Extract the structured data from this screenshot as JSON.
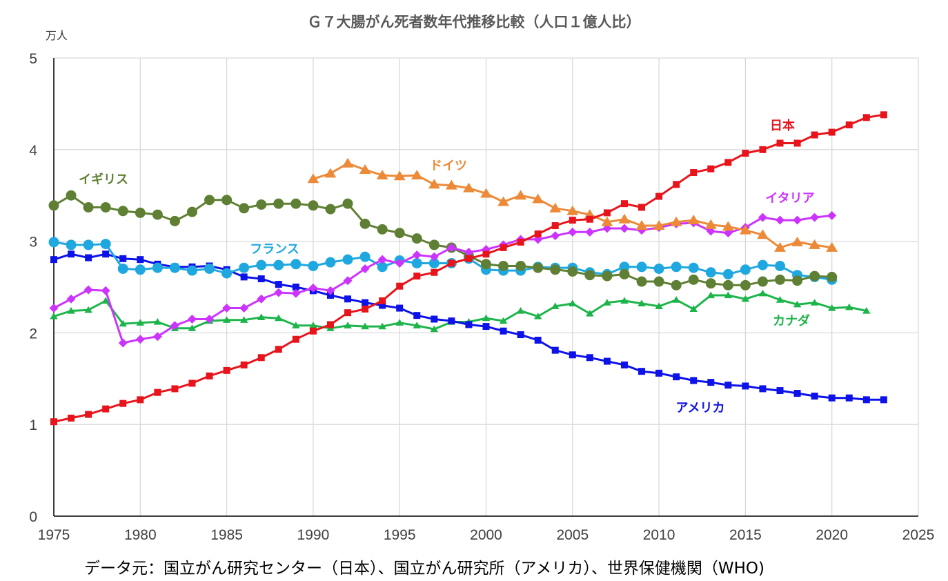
{
  "chart_data": {
    "type": "line",
    "title": "Ｇ７大腸がん死者数年代推移比較（人口１億人比）",
    "ylabel": "万人",
    "xlim": [
      1975,
      2025
    ],
    "ylim": [
      0,
      5
    ],
    "x_ticks": [
      "1975",
      "1980",
      "1985",
      "1990",
      "1995",
      "2000",
      "2005",
      "2010",
      "2015",
      "2020",
      "2025"
    ],
    "y_ticks": [
      "0",
      "1",
      "2",
      "3",
      "4",
      "5"
    ],
    "grid": true,
    "source": "データ元：国立がん研究センター（日本）、国立がん研究所（アメリカ）、世界保健機関（WHO)",
    "series": [
      {
        "name": "日本",
        "color": "#e8141c",
        "marker": "square",
        "x": [
          1975,
          1976,
          1977,
          1978,
          1979,
          1980,
          1981,
          1982,
          1983,
          1984,
          1985,
          1986,
          1987,
          1988,
          1989,
          1990,
          1991,
          1992,
          1993,
          1994,
          1995,
          1996,
          1997,
          1998,
          1999,
          2000,
          2001,
          2002,
          2003,
          2004,
          2005,
          2006,
          2007,
          2008,
          2009,
          2010,
          2011,
          2012,
          2013,
          2014,
          2015,
          2016,
          2017,
          2018,
          2019,
          2020,
          2021,
          2022,
          2023
        ],
        "y": [
          1.03,
          1.07,
          1.11,
          1.17,
          1.23,
          1.27,
          1.35,
          1.39,
          1.45,
          1.53,
          1.59,
          1.65,
          1.73,
          1.82,
          1.93,
          2.02,
          2.09,
          2.22,
          2.26,
          2.35,
          2.51,
          2.62,
          2.66,
          2.76,
          2.81,
          2.86,
          2.93,
          2.99,
          3.08,
          3.17,
          3.23,
          3.24,
          3.31,
          3.41,
          3.37,
          3.49,
          3.62,
          3.75,
          3.79,
          3.86,
          3.96,
          4.0,
          4.07,
          4.07,
          4.16,
          4.19,
          4.27,
          4.35,
          4.38
        ]
      },
      {
        "name": "ドイツ",
        "color": "#ec8a38",
        "marker": "triangle",
        "x": [
          1990,
          1991,
          1992,
          1993,
          1994,
          1995,
          1996,
          1997,
          1998,
          1999,
          2000,
          2001,
          2002,
          2003,
          2004,
          2005,
          2006,
          2007,
          2008,
          2009,
          2010,
          2011,
          2012,
          2013,
          2014,
          2015,
          2016,
          2017,
          2018,
          2019,
          2020
        ],
        "y": [
          3.68,
          3.74,
          3.85,
          3.78,
          3.72,
          3.71,
          3.72,
          3.62,
          3.61,
          3.58,
          3.52,
          3.43,
          3.5,
          3.46,
          3.36,
          3.33,
          3.29,
          3.21,
          3.24,
          3.17,
          3.17,
          3.21,
          3.23,
          3.18,
          3.16,
          3.12,
          3.07,
          2.93,
          2.99,
          2.96,
          2.93
        ]
      },
      {
        "name": "イタリア",
        "color": "#cc33ff",
        "marker": "diamond",
        "x": [
          1975,
          1976,
          1977,
          1978,
          1979,
          1980,
          1981,
          1982,
          1983,
          1984,
          1985,
          1986,
          1987,
          1988,
          1989,
          1990,
          1991,
          1992,
          1993,
          1994,
          1995,
          1996,
          1997,
          1998,
          1999,
          2000,
          2001,
          2002,
          2003,
          2004,
          2005,
          2006,
          2007,
          2008,
          2009,
          2010,
          2011,
          2012,
          2013,
          2014,
          2015,
          2016,
          2017,
          2018,
          2019,
          2020
        ],
        "y": [
          2.27,
          2.37,
          2.47,
          2.46,
          1.89,
          1.93,
          1.96,
          2.08,
          2.15,
          2.15,
          2.27,
          2.27,
          2.37,
          2.44,
          2.43,
          2.49,
          2.46,
          2.57,
          2.7,
          2.8,
          2.76,
          2.85,
          2.83,
          2.93,
          2.88,
          2.91,
          2.96,
          3.02,
          3.02,
          3.06,
          3.1,
          3.1,
          3.14,
          3.14,
          3.12,
          3.15,
          3.19,
          3.2,
          3.11,
          3.09,
          3.15,
          3.26,
          3.23,
          3.23,
          3.26,
          3.28
        ]
      },
      {
        "name": "イギリス",
        "color": "#5f8034",
        "marker": "circle",
        "x": [
          1975,
          1976,
          1977,
          1978,
          1979,
          1980,
          1981,
          1982,
          1983,
          1984,
          1985,
          1986,
          1987,
          1988,
          1989,
          1990,
          1991,
          1992,
          1993,
          1994,
          1995,
          1996,
          1997,
          1998,
          1999,
          2000,
          2001,
          2002,
          2003,
          2004,
          2005,
          2006,
          2007,
          2008,
          2009,
          2010,
          2011,
          2012,
          2013,
          2014,
          2015,
          2016,
          2017,
          2018,
          2019,
          2020
        ],
        "y": [
          3.39,
          3.5,
          3.37,
          3.37,
          3.33,
          3.31,
          3.29,
          3.22,
          3.32,
          3.45,
          3.45,
          3.36,
          3.4,
          3.41,
          3.41,
          3.39,
          3.35,
          3.41,
          3.19,
          3.13,
          3.09,
          3.03,
          2.96,
          2.93,
          2.84,
          2.75,
          2.73,
          2.73,
          2.71,
          2.69,
          2.67,
          2.63,
          2.62,
          2.64,
          2.56,
          2.56,
          2.52,
          2.58,
          2.54,
          2.52,
          2.52,
          2.56,
          2.58,
          2.57,
          2.62,
          2.61
        ]
      },
      {
        "name": "フランス",
        "color": "#1fa8e0",
        "marker": "circle",
        "x": [
          1975,
          1976,
          1977,
          1978,
          1979,
          1980,
          1981,
          1982,
          1983,
          1984,
          1985,
          1986,
          1987,
          1988,
          1989,
          1990,
          1991,
          1992,
          1993,
          1994,
          1995,
          1996,
          1997,
          1998,
          1999,
          2000,
          2001,
          2002,
          2003,
          2004,
          2005,
          2006,
          2007,
          2008,
          2009,
          2010,
          2011,
          2012,
          2013,
          2014,
          2015,
          2016,
          2017,
          2018,
          2019,
          2020
        ],
        "y": [
          2.99,
          2.96,
          2.96,
          2.97,
          2.7,
          2.69,
          2.71,
          2.71,
          2.68,
          2.7,
          2.65,
          2.71,
          2.74,
          2.74,
          2.75,
          2.73,
          2.77,
          2.8,
          2.83,
          2.72,
          2.79,
          2.76,
          2.76,
          2.76,
          2.81,
          2.69,
          2.68,
          2.68,
          2.72,
          2.71,
          2.71,
          2.66,
          2.64,
          2.72,
          2.72,
          2.7,
          2.72,
          2.71,
          2.66,
          2.64,
          2.69,
          2.74,
          2.73,
          2.63,
          2.61,
          2.58
        ]
      },
      {
        "name": "アメリカ",
        "color": "#0d12e8",
        "marker": "square",
        "x": [
          1975,
          1976,
          1977,
          1978,
          1979,
          1980,
          1981,
          1982,
          1983,
          1984,
          1985,
          1986,
          1987,
          1988,
          1989,
          1990,
          1991,
          1992,
          1993,
          1994,
          1995,
          1996,
          1997,
          1998,
          1999,
          2000,
          2001,
          2002,
          2003,
          2004,
          2005,
          2006,
          2007,
          2008,
          2009,
          2010,
          2011,
          2012,
          2013,
          2014,
          2015,
          2016,
          2017,
          2018,
          2019,
          2020,
          2021,
          2022,
          2023
        ],
        "y": [
          2.8,
          2.86,
          2.82,
          2.86,
          2.81,
          2.8,
          2.75,
          2.72,
          2.72,
          2.73,
          2.69,
          2.61,
          2.59,
          2.53,
          2.5,
          2.46,
          2.41,
          2.37,
          2.33,
          2.3,
          2.27,
          2.19,
          2.15,
          2.13,
          2.09,
          2.07,
          2.02,
          1.98,
          1.92,
          1.81,
          1.76,
          1.73,
          1.69,
          1.65,
          1.58,
          1.56,
          1.52,
          1.48,
          1.46,
          1.43,
          1.42,
          1.39,
          1.37,
          1.34,
          1.31,
          1.29,
          1.29,
          1.27,
          1.27
        ]
      },
      {
        "name": "カナダ",
        "color": "#1db54a",
        "marker": "triangle",
        "x": [
          1975,
          1976,
          1977,
          1978,
          1979,
          1980,
          1981,
          1982,
          1983,
          1984,
          1985,
          1986,
          1987,
          1988,
          1989,
          1990,
          1991,
          1992,
          1993,
          1994,
          1995,
          1996,
          1997,
          1998,
          1999,
          2000,
          2001,
          2002,
          2003,
          2004,
          2005,
          2006,
          2007,
          2008,
          2009,
          2010,
          2011,
          2012,
          2013,
          2014,
          2015,
          2016,
          2017,
          2018,
          2019,
          2020,
          2021,
          2022
        ],
        "y": [
          2.18,
          2.24,
          2.25,
          2.35,
          2.1,
          2.11,
          2.12,
          2.05,
          2.05,
          2.13,
          2.14,
          2.14,
          2.17,
          2.16,
          2.08,
          2.08,
          2.05,
          2.08,
          2.07,
          2.07,
          2.11,
          2.08,
          2.04,
          2.12,
          2.12,
          2.16,
          2.13,
          2.24,
          2.18,
          2.29,
          2.32,
          2.21,
          2.33,
          2.35,
          2.32,
          2.29,
          2.36,
          2.26,
          2.41,
          2.41,
          2.37,
          2.43,
          2.36,
          2.31,
          2.33,
          2.27,
          2.28,
          2.24
        ]
      }
    ],
    "series_labels": {
      "日本": "日本",
      "ドイツ": "ドイツ",
      "イタリア": "イタリア",
      "イギリス": "イギリス",
      "フランス": "フランス",
      "アメリカ": "アメリカ",
      "カナダ": "カナダ"
    }
  }
}
